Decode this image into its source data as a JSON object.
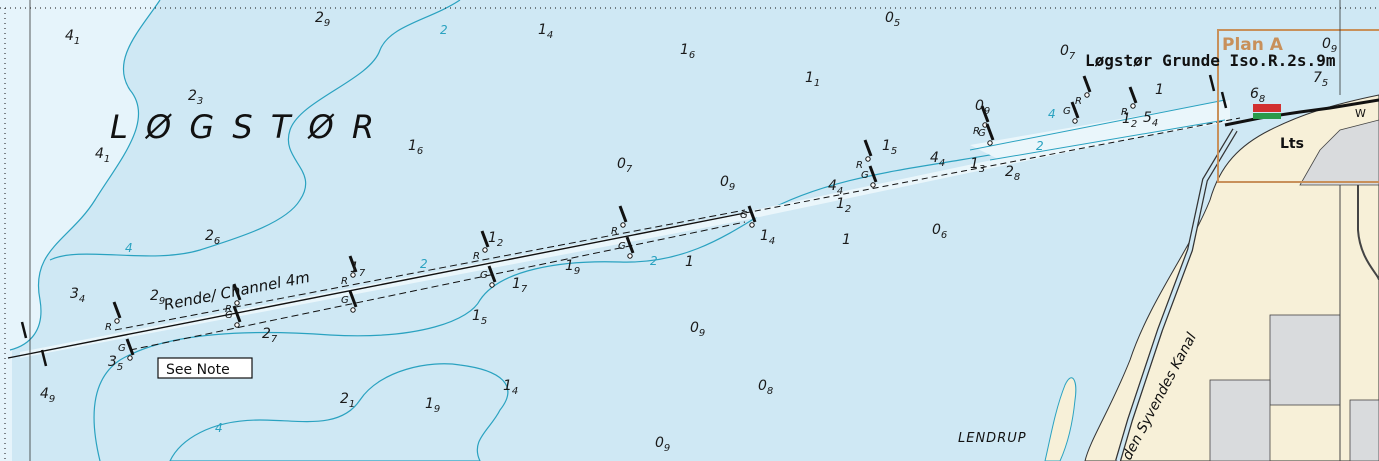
{
  "chart": {
    "area_name": "L Ø G S T Ø R",
    "channel_label": "Rende/ Channel 4m",
    "note_label": "See Note",
    "light_label": "Løgstør Grunde  Iso.R.2s.9m",
    "plan_label": "Plan A",
    "lights_abbrev": "Lts",
    "lendrup_label": "LENDRUP",
    "kanal_label": "den Syvendes Kanal",
    "west_mark": "W",
    "port_mark": "R",
    "starboard_mark": "G"
  },
  "soundings": [
    {
      "main": "4",
      "sub": "1"
    },
    {
      "main": "2",
      "sub": "9"
    },
    {
      "main": "1",
      "sub": "4"
    },
    {
      "main": "0",
      "sub": "5"
    },
    {
      "main": "1",
      "sub": "6"
    },
    {
      "main": "1",
      "sub": "1"
    },
    {
      "main": "0",
      "sub": "7"
    },
    {
      "main": "0",
      "sub": "9"
    },
    {
      "main": "7",
      "sub": "5"
    },
    {
      "main": "2",
      "sub": "3"
    },
    {
      "main": "1",
      "sub": "6"
    },
    {
      "main": "4",
      "sub": "1"
    },
    {
      "main": "0",
      "sub": "7"
    },
    {
      "main": "0",
      "sub": "9"
    },
    {
      "main": "1",
      "sub": "5"
    },
    {
      "main": "4",
      "sub": "4"
    },
    {
      "main": "1",
      "sub": "3"
    },
    {
      "main": "2",
      "sub": "8"
    },
    {
      "main": "4",
      "sub": "4"
    },
    {
      "main": "1",
      "sub": "2"
    },
    {
      "main": "0",
      "sub": "6"
    },
    {
      "main": "2",
      "sub": "6"
    },
    {
      "main": "1",
      "sub": "2"
    },
    {
      "main": "1",
      "sub": "4"
    },
    {
      "main": "1",
      "sub": ""
    },
    {
      "main": "3",
      "sub": "4"
    },
    {
      "main": "2",
      "sub": "9"
    },
    {
      "main": "1",
      "sub": "7"
    },
    {
      "main": "1",
      "sub": "9"
    },
    {
      "main": "1",
      "sub": ""
    },
    {
      "main": "1",
      "sub": "7"
    },
    {
      "main": "2",
      "sub": "7"
    },
    {
      "main": "1",
      "sub": "5"
    },
    {
      "main": "0",
      "sub": "9"
    },
    {
      "main": "3",
      "sub": "5"
    },
    {
      "main": "4",
      "sub": "9"
    },
    {
      "main": "2",
      "sub": "1"
    },
    {
      "main": "1",
      "sub": "9"
    },
    {
      "main": "1",
      "sub": "4"
    },
    {
      "main": "0",
      "sub": "8"
    },
    {
      "main": "0",
      "sub": "9"
    },
    {
      "main": "0",
      "sub": "9"
    },
    {
      "main": "1",
      "sub": ""
    },
    {
      "main": "5",
      "sub": "4"
    },
    {
      "main": "1",
      "sub": "2"
    },
    {
      "main": "6",
      "sub": "8"
    }
  ],
  "depth_contours": [
    "2",
    "2",
    "4",
    "2",
    "4",
    "2",
    "4"
  ],
  "colors": {
    "water": "#cfe8f4",
    "shallow": "#e6f4fb",
    "land": "#f7f0d8",
    "built": "#d9dbdd",
    "contour": "#2aa2c0",
    "plan_box": "#c8905a",
    "port": "#d23030",
    "starboard": "#2a9a4a"
  }
}
